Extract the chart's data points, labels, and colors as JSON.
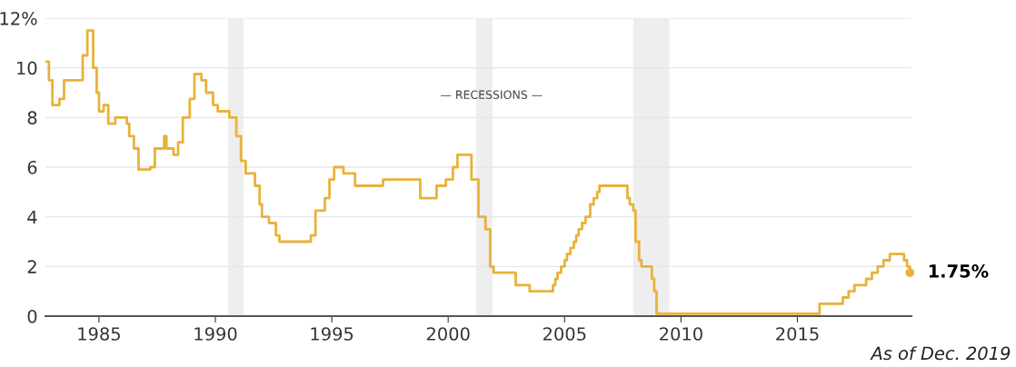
{
  "chart_data": {
    "type": "step",
    "x": [
      1982.75,
      1982.85,
      1983.0,
      1983.3,
      1983.5,
      1984.3,
      1984.5,
      1984.75,
      1984.9,
      1985.0,
      1985.2,
      1985.4,
      1985.7,
      1986.2,
      1986.3,
      1986.5,
      1986.7,
      1987.2,
      1987.4,
      1987.8,
      1987.9,
      1988.2,
      1988.4,
      1988.6,
      1988.9,
      1989.1,
      1989.4,
      1989.6,
      1989.9,
      1990.1,
      1990.6,
      1990.9,
      1991.1,
      1991.3,
      1991.7,
      1991.9,
      1992.0,
      1992.3,
      1992.6,
      1992.75,
      1994.1,
      1994.3,
      1994.7,
      1994.9,
      1995.1,
      1995.5,
      1996.0,
      1997.2,
      1998.8,
      1999.5,
      1999.9,
      2000.2,
      2000.4,
      2001.0,
      2001.3,
      2001.6,
      2001.8,
      2001.95,
      2002.9,
      2003.5,
      2004.5,
      2004.6,
      2004.7,
      2004.85,
      2005.0,
      2005.1,
      2005.25,
      2005.4,
      2005.5,
      2005.6,
      2005.75,
      2005.9,
      2006.1,
      2006.25,
      2006.4,
      2006.5,
      2007.7,
      2007.8,
      2007.95,
      2008.05,
      2008.2,
      2008.3,
      2008.75,
      2008.85,
      2008.95,
      2015.95,
      2016.95,
      2017.2,
      2017.45,
      2017.95,
      2018.2,
      2018.45,
      2018.7,
      2018.97,
      2019.58,
      2019.71,
      2019.83
    ],
    "series": [
      {
        "color": "#e8b23a",
        "values": [
          10.25,
          9.5,
          8.5,
          8.75,
          9.5,
          10.5,
          11.5,
          10,
          9,
          8.25,
          8.5,
          7.75,
          8,
          7.75,
          7.25,
          6.75,
          5.9,
          6,
          6.75,
          7.25,
          6.75,
          6.5,
          7,
          8,
          8.75,
          9.75,
          9.5,
          9,
          8.5,
          8.25,
          8,
          7.25,
          6.25,
          5.75,
          5.25,
          4.5,
          4,
          3.75,
          3.25,
          3,
          3.25,
          4.25,
          4.75,
          5.5,
          6,
          5.75,
          5.25,
          5.5,
          4.75,
          5.25,
          5.5,
          6,
          6.5,
          5.5,
          4,
          3.5,
          2,
          1.75,
          1.25,
          1,
          1.25,
          1.5,
          1.75,
          2,
          2.25,
          2.5,
          2.75,
          3,
          3.25,
          3.5,
          3.75,
          4,
          4.5,
          4.75,
          5,
          5.25,
          4.75,
          4.5,
          4.25,
          3,
          2.25,
          2,
          1.5,
          1,
          0.1,
          0.5,
          0.75,
          1,
          1.25,
          1.5,
          1.75,
          2,
          2.25,
          2.5,
          2.25,
          2,
          1.75
        ]
      }
    ],
    "xlim": [
      1982.7,
      2019.9
    ],
    "ylim": [
      0,
      12
    ],
    "xticks": [
      1985,
      1990,
      1995,
      2000,
      2005,
      2010,
      2015
    ],
    "yticks": [
      0,
      2,
      4,
      6,
      8,
      10,
      {
        "value": 12,
        "label": "12%"
      }
    ],
    "grid": "y",
    "marker": "none",
    "line_style": "solid",
    "bands": [
      {
        "axis": "x",
        "from": 1990.55,
        "to": 1991.2,
        "color": "#eeeeee"
      },
      {
        "axis": "x",
        "from": 2001.2,
        "to": 2001.9,
        "color": "#eeeeee"
      },
      {
        "axis": "x",
        "from": 2007.95,
        "to": 2009.5,
        "color": "#eeeeee"
      }
    ],
    "annotations": [
      "— RECESSIONS —",
      {
        "text": "1.75%",
        "x": 2019.83,
        "y": 1.75
      },
      "As of Dec. 2019"
    ]
  }
}
